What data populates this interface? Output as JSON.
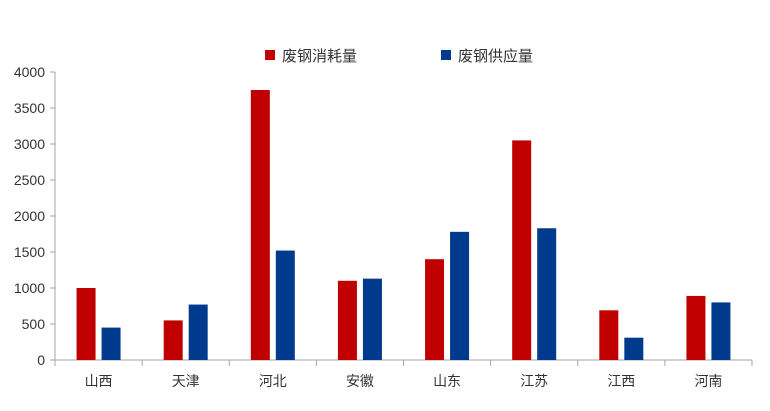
{
  "chart_data": {
    "type": "bar",
    "categories": [
      "山西",
      "天津",
      "河北",
      "安徽",
      "山东",
      "江苏",
      "江西",
      "河南"
    ],
    "series": [
      {
        "name": "废钢消耗量",
        "color": "#C00000",
        "values": [
          1000,
          550,
          3750,
          1100,
          1400,
          3050,
          690,
          890
        ]
      },
      {
        "name": "废钢供应量",
        "color": "#003A8C",
        "values": [
          450,
          770,
          1520,
          1130,
          1780,
          1830,
          310,
          800
        ]
      }
    ],
    "y_ticks": [
      "0",
      "500",
      "1000",
      "1500",
      "2000",
      "2500",
      "3000",
      "3500",
      "4000"
    ],
    "ylim": [
      0,
      4000
    ],
    "grid": false,
    "legend_position": "top-center"
  }
}
